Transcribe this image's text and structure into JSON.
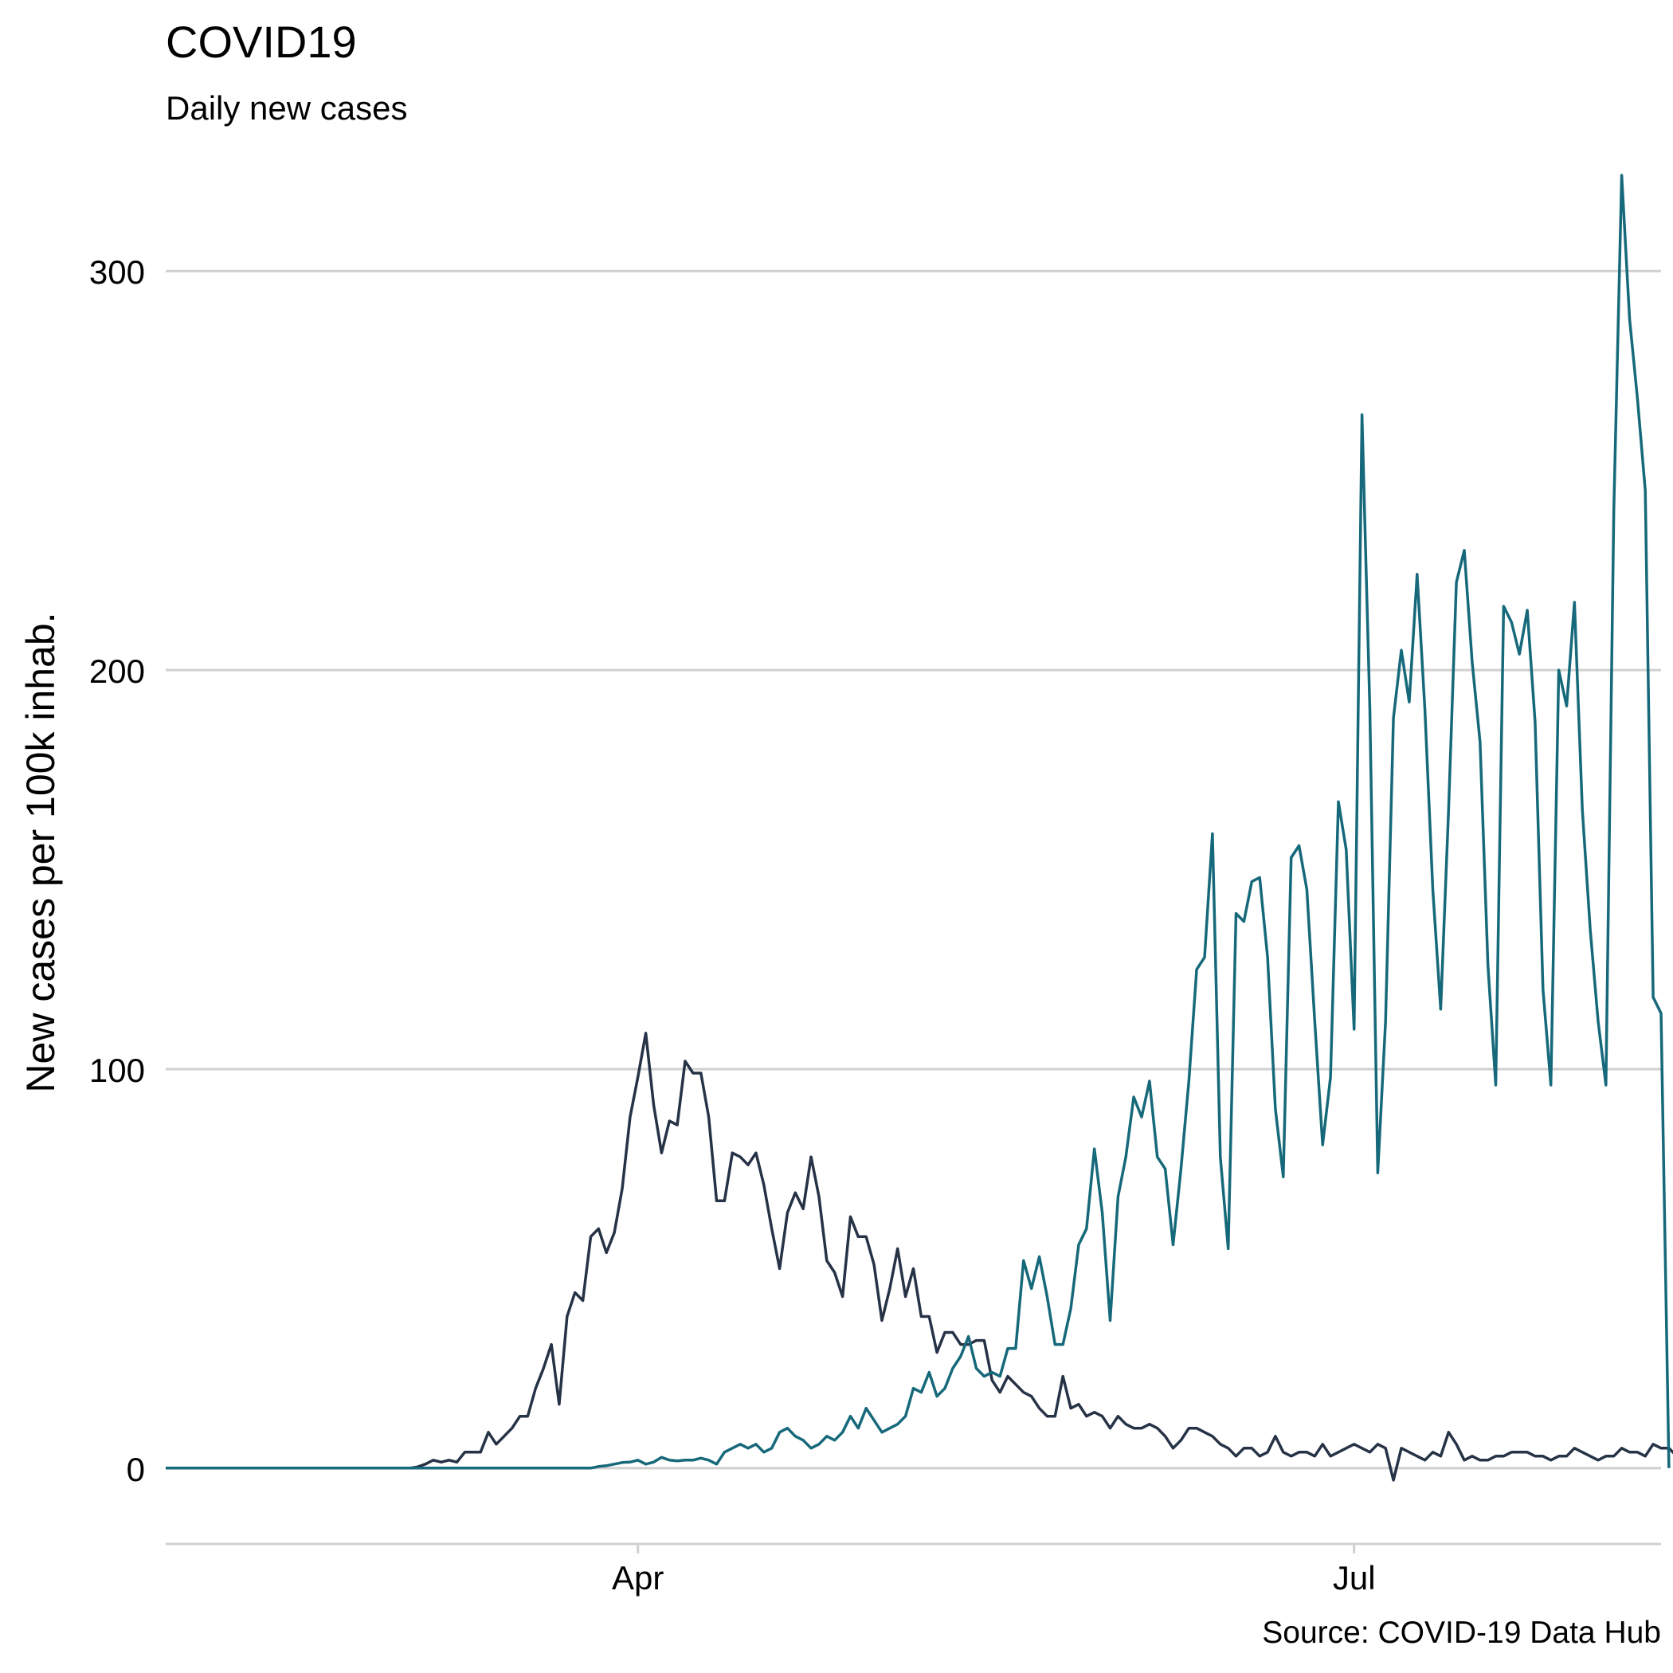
{
  "chart_data": {
    "type": "line",
    "title": "COVID19",
    "subtitle": "Daily new cases",
    "caption": "Source: COVID-19 Data Hub",
    "ylabel": "New cases per 100k inhab.",
    "xlabel": "",
    "x_start": "2020-02-01",
    "x_end": "2020-08-09",
    "xticks": [
      {
        "date": "2020-04-01",
        "label": "Apr"
      },
      {
        "date": "2020-07-01",
        "label": "Jul"
      }
    ],
    "yticks": [
      0,
      100,
      200,
      300
    ],
    "ylim": [
      -19,
      328
    ],
    "grid": true,
    "legend": "none",
    "series": [
      {
        "color": "#263246",
        "x_first": "2020-02-01",
        "x_step_days": 1,
        "values": [
          0,
          0,
          0,
          0,
          0,
          0,
          0,
          0,
          0,
          0,
          0,
          0,
          0,
          0,
          0,
          0,
          0,
          0,
          0,
          0,
          0,
          0,
          0,
          0,
          0,
          0,
          0,
          0,
          0,
          0,
          0,
          0,
          0.3,
          1,
          2,
          1.5,
          2,
          1.5,
          4,
          4,
          4,
          9,
          6,
          8,
          10,
          13,
          13,
          20,
          25,
          31,
          16,
          38,
          44,
          42,
          58,
          60,
          54,
          59,
          70,
          88,
          98,
          109,
          91,
          79,
          87,
          86,
          102,
          99,
          99,
          88,
          67,
          67,
          79,
          78,
          76,
          79,
          71,
          60,
          50,
          64,
          69,
          65,
          78,
          68,
          52,
          49,
          43,
          63,
          58,
          58,
          51,
          37,
          45,
          55,
          43,
          50,
          38,
          38,
          29,
          34,
          34,
          31,
          31,
          32,
          32,
          22,
          19,
          23,
          21,
          19,
          18,
          15,
          13,
          13,
          23,
          15,
          16,
          13,
          14,
          13,
          10,
          13,
          11,
          10,
          10,
          11,
          10,
          8,
          5,
          7,
          10,
          10,
          9,
          8,
          6,
          5,
          3,
          5,
          5,
          3,
          4,
          8,
          4,
          3,
          4,
          4,
          3,
          6,
          3,
          4,
          5,
          6,
          5,
          4,
          6,
          5,
          -3,
          5,
          4,
          3,
          2,
          4,
          3,
          9,
          6,
          2,
          3,
          2,
          2,
          3,
          3,
          4,
          4,
          4,
          3,
          3,
          2,
          3,
          3,
          5,
          4,
          3,
          2,
          3,
          3,
          5,
          4,
          4,
          3,
          6,
          5,
          5,
          3,
          4,
          4,
          3,
          0
        ]
      },
      {
        "color": "#16697a",
        "x_first": "2020-02-01",
        "x_step_days": 1,
        "values": [
          0,
          0,
          0,
          0,
          0,
          0,
          0,
          0,
          0,
          0,
          0,
          0,
          0,
          0,
          0,
          0,
          0,
          0,
          0,
          0,
          0,
          0,
          0,
          0,
          0,
          0,
          0,
          0,
          0,
          0,
          0,
          0,
          0,
          0,
          0,
          0,
          0,
          0,
          0,
          0,
          0,
          0,
          0,
          0,
          0,
          0,
          0,
          0,
          0,
          0,
          0,
          0,
          0,
          0,
          0,
          0.4,
          0.6,
          1,
          1.4,
          1.5,
          2,
          1,
          1.5,
          2.7,
          2,
          1.8,
          2,
          2,
          2.5,
          2,
          1,
          4,
          5,
          6,
          5,
          6,
          4,
          5,
          9,
          10,
          8,
          7,
          5,
          6,
          8,
          7,
          9,
          13,
          10,
          15,
          12,
          9,
          10,
          11,
          13,
          20,
          19,
          24,
          18,
          20,
          25,
          28,
          33,
          25,
          23,
          24,
          23,
          30,
          30,
          52,
          45,
          53,
          43,
          31,
          31,
          40,
          56,
          60,
          80,
          64,
          37,
          68,
          78,
          93,
          88,
          97,
          78,
          75,
          56,
          75,
          97,
          125,
          128,
          159,
          78,
          55,
          139,
          137,
          147,
          148,
          128,
          90,
          73,
          153,
          156,
          145,
          112,
          81,
          98,
          167,
          155,
          110,
          264,
          190,
          74,
          112,
          188,
          205,
          192,
          224,
          190,
          145,
          115,
          165,
          222,
          230,
          202,
          182,
          126,
          96,
          216,
          212,
          204,
          215,
          187,
          120,
          96,
          200,
          191,
          217,
          165,
          135,
          112,
          96,
          240,
          324,
          288,
          268,
          245,
          118,
          114,
          0
        ]
      }
    ]
  }
}
